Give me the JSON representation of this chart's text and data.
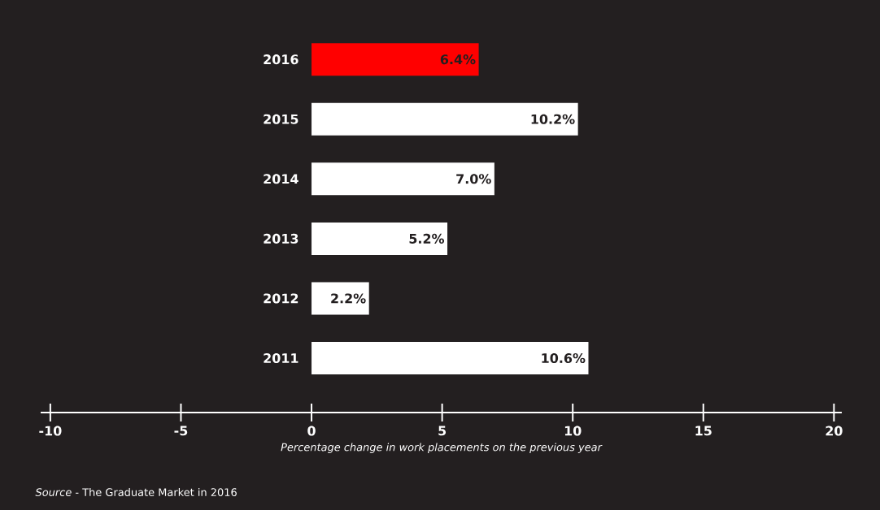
{
  "chart_data": {
    "type": "bar",
    "orientation": "horizontal",
    "xlabel": "Percentage change in work placements on the previous year",
    "categories": [
      "2016",
      "2015",
      "2014",
      "2013",
      "2012",
      "2011"
    ],
    "values": [
      6.4,
      10.2,
      7.0,
      5.2,
      2.2,
      10.6
    ],
    "value_labels": [
      "6.4%",
      "10.2%",
      "7.0%",
      "5.2%",
      "2.2%",
      "10.6%"
    ],
    "colors": [
      "#ff0000",
      "#ffffff",
      "#ffffff",
      "#ffffff",
      "#ffffff",
      "#ffffff"
    ],
    "xlim": [
      -10.37,
      20.3
    ],
    "xticks": [
      -10,
      -5,
      0,
      5,
      10,
      15,
      20
    ],
    "annotations": [
      "*Source* - The Graduate Market in 2016"
    ]
  }
}
